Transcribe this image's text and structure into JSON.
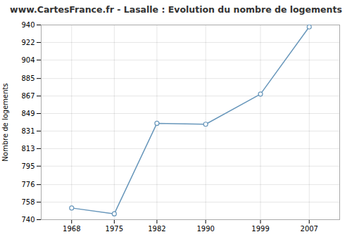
{
  "chart_data": {
    "type": "line",
    "title": "www.CartesFrance.fr - Lasalle : Evolution du nombre de logements",
    "ylabel": "Nombre de logements",
    "x": [
      1968,
      1975,
      1982,
      1990,
      1999,
      2007
    ],
    "values": [
      752,
      746,
      839,
      838,
      869,
      938
    ],
    "xlim": [
      1963,
      2012
    ],
    "xticks": [
      1968,
      1975,
      1982,
      1990,
      1999,
      2007
    ],
    "ylim": [
      740,
      940
    ],
    "yticks": [
      740,
      758,
      776,
      795,
      813,
      831,
      849,
      867,
      885,
      904,
      922,
      940
    ],
    "color": "#6897bb",
    "marker": "circle",
    "grid": true
  }
}
